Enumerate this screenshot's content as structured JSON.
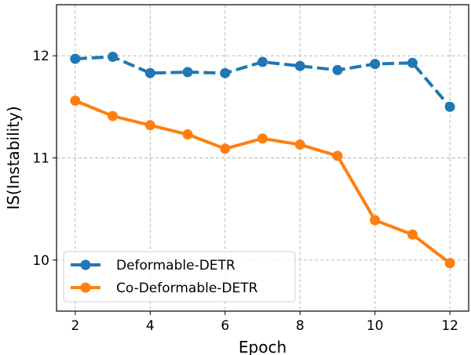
{
  "chart_data": {
    "type": "line",
    "title": "",
    "xlabel": "Epoch",
    "ylabel": "IS(Instability)",
    "xlim": [
      1.5,
      12.5
    ],
    "ylim": [
      9.5,
      12.5
    ],
    "xticks": [
      2,
      4,
      6,
      8,
      10,
      12
    ],
    "xtick_labels": [
      "2",
      "4",
      "6",
      "8",
      "10",
      "12"
    ],
    "yticks": [
      10,
      11,
      12
    ],
    "ytick_labels": [
      "10",
      "11",
      "12"
    ],
    "grid": true,
    "legend_position": "lower-left",
    "x": [
      2,
      3,
      4,
      5,
      6,
      7,
      8,
      9,
      10,
      11,
      12
    ],
    "series": [
      {
        "name": "Deformable-DETR",
        "color": "#1f77b4",
        "linestyle": "dashed",
        "marker": "circle",
        "values": [
          11.97,
          11.99,
          11.83,
          11.84,
          11.83,
          11.94,
          11.9,
          11.86,
          11.92,
          11.93,
          11.5
        ]
      },
      {
        "name": "Co-Deformable-DETR",
        "color": "#ff7f0e",
        "linestyle": "solid",
        "marker": "circle",
        "values": [
          11.56,
          11.41,
          11.32,
          11.23,
          11.09,
          11.19,
          11.13,
          11.02,
          10.39,
          10.25,
          9.97
        ]
      }
    ]
  }
}
